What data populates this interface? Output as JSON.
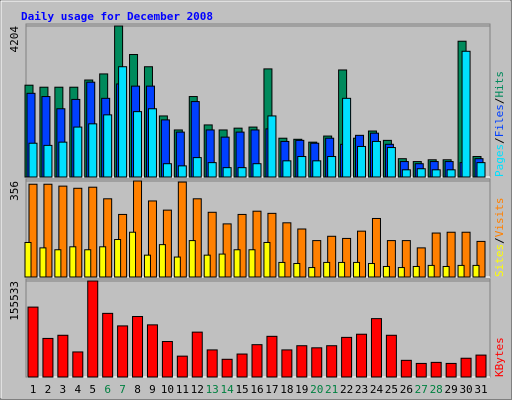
{
  "chart_data": [
    {
      "type": "bar",
      "ylim": [
        0,
        4204
      ],
      "yticks": [
        4204
      ],
      "series": [
        {
          "name": "Hits",
          "color": "#008a5c",
          "values": [
            2556,
            2500,
            2500,
            2500,
            2700,
            2870,
            4204,
            3410,
            3070,
            1700,
            1310,
            2240,
            1450,
            1310,
            1360,
            1390,
            3010,
            1080,
            1050,
            970,
            1140,
            2980,
            1080,
            1280,
            1020,
            510,
            430,
            480,
            480,
            3780,
            570
          ]
        },
        {
          "name": "Files",
          "color": "#0040ff",
          "values": [
            2330,
            2240,
            1900,
            2160,
            2640,
            2190,
            2590,
            2530,
            2530,
            1590,
            1250,
            2100,
            1310,
            1110,
            1250,
            1310,
            1340,
            990,
            1020,
            940,
            1080,
            910,
            1160,
            1220,
            910,
            430,
            370,
            430,
            430,
            400,
            510
          ]
        },
        {
          "name": "Pages",
          "color": "#00e0ff",
          "values": [
            940,
            880,
            970,
            1390,
            1480,
            1730,
            3070,
            1820,
            1900,
            370,
            310,
            540,
            400,
            260,
            260,
            370,
            1700,
            450,
            570,
            450,
            570,
            2190,
            850,
            990,
            820,
            200,
            230,
            200,
            200,
            3500,
            400
          ]
        }
      ]
    },
    {
      "type": "bar",
      "ylim": [
        0,
        356
      ],
      "yticks": [
        356
      ],
      "series": [
        {
          "name": "Visits",
          "color": "#ff8000",
          "values": [
            344,
            344,
            337,
            329,
            333,
            290,
            232,
            356,
            282,
            248,
            352,
            290,
            240,
            197,
            232,
            244,
            236,
            201,
            178,
            135,
            151,
            143,
            170,
            217,
            135,
            135,
            108,
            163,
            166,
            166,
            132
          ]
        },
        {
          "name": "Sites",
          "color": "#ffff00",
          "values": [
            128,
            108,
            101,
            112,
            101,
            112,
            139,
            166,
            81,
            120,
            74,
            135,
            81,
            85,
            101,
            101,
            128,
            54,
            50,
            35,
            54,
            54,
            54,
            50,
            39,
            35,
            39,
            43,
            39,
            43,
            43
          ]
        }
      ]
    },
    {
      "type": "bar",
      "ylim": [
        0,
        155533
      ],
      "yticks": [
        155533
      ],
      "series": [
        {
          "name": "KBytes",
          "color": "#ff0000",
          "values": [
            113250,
            62500,
            67600,
            40600,
            155533,
            103100,
            82800,
            98000,
            84500,
            57500,
            33800,
            72700,
            43900,
            28700,
            37200,
            52400,
            65900,
            43900,
            50700,
            47300,
            50700,
            64200,
            69300,
            94600,
            67600,
            27000,
            22000,
            23700,
            22000,
            30400,
            35500
          ]
        }
      ],
      "categories": [
        "1",
        "2",
        "3",
        "4",
        "5",
        "6",
        "7",
        "8",
        "9",
        "10",
        "11",
        "12",
        "13",
        "14",
        "15",
        "16",
        "17",
        "18",
        "19",
        "20",
        "21",
        "22",
        "23",
        "24",
        "25",
        "26",
        "27",
        "28",
        "29",
        "30",
        "31"
      ],
      "category_colors": [
        "#000000",
        "#000000",
        "#000000",
        "#000000",
        "#000000",
        "#008040",
        "#008040",
        "#000000",
        "#000000",
        "#000000",
        "#000000",
        "#000000",
        "#008040",
        "#008040",
        "#000000",
        "#000000",
        "#000000",
        "#000000",
        "#000000",
        "#008040",
        "#008040",
        "#000000",
        "#000000",
        "#000000",
        "#000000",
        "#000000",
        "#008040",
        "#008040",
        "#000000",
        "#000000",
        "#000000"
      ]
    }
  ],
  "title": "Daily usage for December 2008",
  "separator": "/"
}
